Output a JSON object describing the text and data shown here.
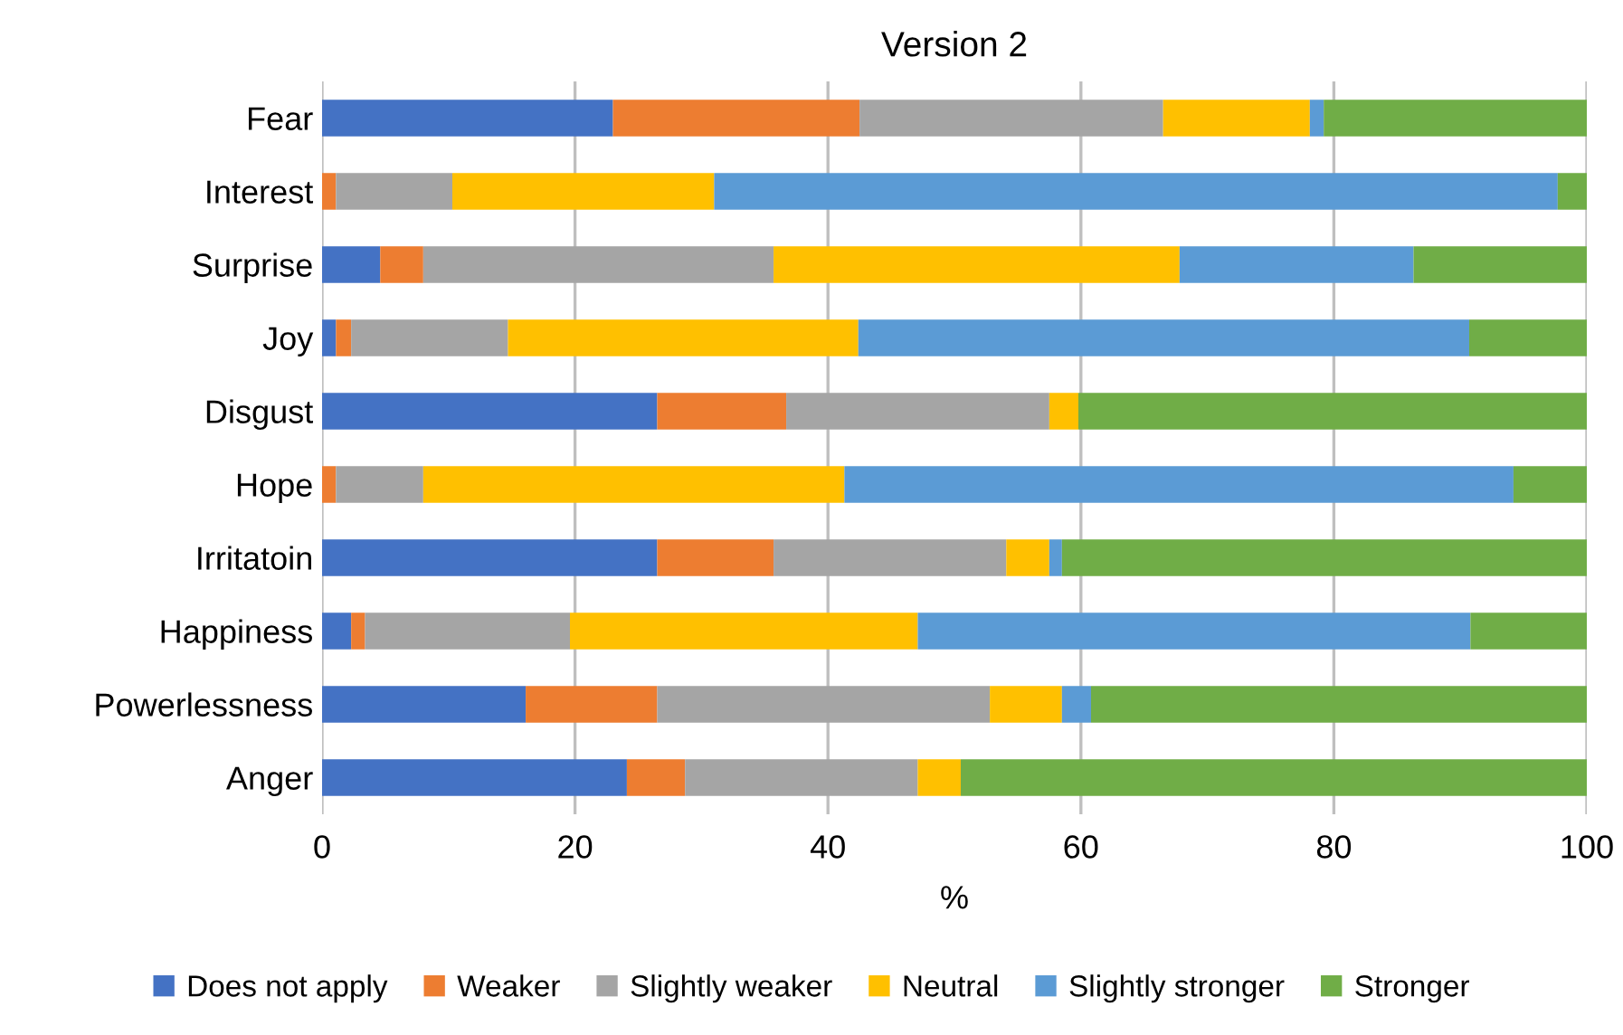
{
  "chart_data": {
    "type": "bar",
    "orientation": "horizontal",
    "stacked": true,
    "title": "Version 2",
    "xlabel": "%",
    "categories": [
      "Fear",
      "Interest",
      "Surprise",
      "Joy",
      "Disgust",
      "Hope",
      "Irritatoin",
      "Happiness",
      "Powerlessness",
      "Anger"
    ],
    "series": [
      {
        "name": "Does not apply",
        "color": "#4472c4",
        "values": [
          23.0,
          0,
          4.6,
          1.1,
          26.5,
          0,
          26.5,
          2.3,
          16.1,
          24.1
        ]
      },
      {
        "name": "Weaker",
        "color": "#ed7d31",
        "values": [
          19.5,
          1.1,
          3.4,
          1.2,
          10.2,
          1.1,
          9.2,
          1.1,
          10.4,
          4.6
        ]
      },
      {
        "name": "Slightly weaker",
        "color": "#a5a5a5",
        "values": [
          24.0,
          9.2,
          27.7,
          12.4,
          20.8,
          6.9,
          18.4,
          16.2,
          26.3,
          18.4
        ]
      },
      {
        "name": "Neutral",
        "color": "#ffc000",
        "values": [
          11.6,
          20.7,
          32.1,
          27.7,
          2.3,
          33.3,
          3.4,
          27.5,
          5.7,
          3.4
        ]
      },
      {
        "name": "Slightly stronger",
        "color": "#5b9bd5",
        "values": [
          1.1,
          66.7,
          18.5,
          48.3,
          0,
          52.9,
          1.0,
          43.7,
          2.3,
          0
        ]
      },
      {
        "name": "Stronger",
        "color": "#70ad47",
        "values": [
          20.8,
          2.3,
          13.7,
          9.3,
          40.2,
          5.8,
          41.5,
          9.2,
          39.2,
          49.5
        ]
      }
    ],
    "xlim": [
      0,
      100
    ],
    "xticks": [
      0,
      20,
      40,
      60,
      80,
      100
    ],
    "grid": "x",
    "legend": "bottom"
  }
}
